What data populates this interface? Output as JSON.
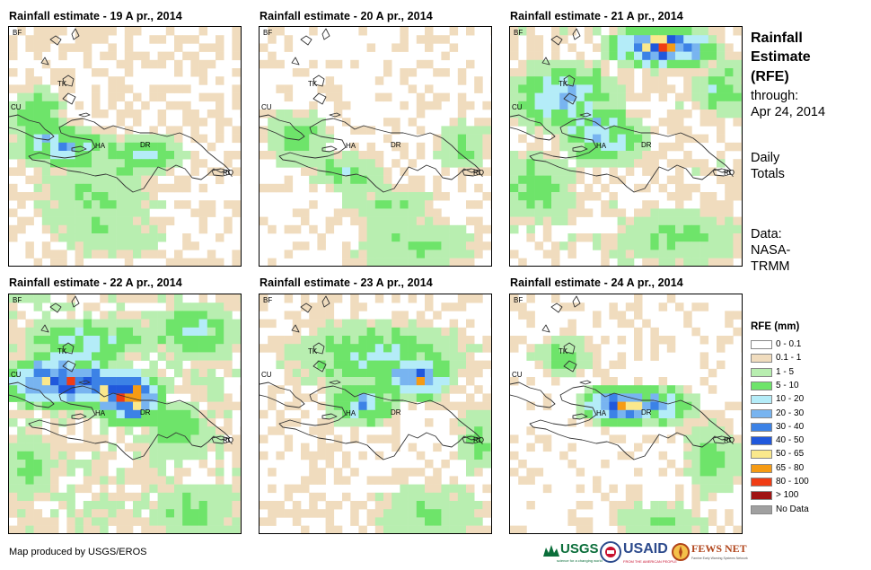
{
  "panels": [
    {
      "title": "Rainfall estimate - 19 A pr., 2014"
    },
    {
      "title": "Rainfall estimate - 20 A pr., 2014"
    },
    {
      "title": "Rainfall estimate - 21 A pr., 2014"
    },
    {
      "title": "Rainfall estimate - 22 A pr., 2014"
    },
    {
      "title": "Rainfall estimate - 23 A pr., 2014"
    },
    {
      "title": "Rainfall estimate - 24 A pr., 2014"
    }
  ],
  "map_labels": {
    "bf": "BF",
    "cu": "CU",
    "tk": "TK",
    "ha": "HA",
    "dr": "DR",
    "rq": "RQ"
  },
  "side": {
    "heading_1": "Rainfall",
    "heading_2": "Estimate",
    "heading_3": "(RFE)",
    "through": "through:",
    "date": "Apr 24, 2014",
    "daily_1": "Daily",
    "daily_2": "Totals",
    "data_1": "Data:",
    "data_2": "NASA-",
    "data_3": "TRMM"
  },
  "legend": {
    "title": "RFE (mm)",
    "items": [
      {
        "label": "0 - 0.1",
        "color": "#ffffff"
      },
      {
        "label": "0.1 - 1",
        "color": "#f0dcbe"
      },
      {
        "label": "1 - 5",
        "color": "#b8eeb0"
      },
      {
        "label": "5 - 10",
        "color": "#6ee46a"
      },
      {
        "label": "10 - 20",
        "color": "#b4ecf8"
      },
      {
        "label": "20 - 30",
        "color": "#78b4f0"
      },
      {
        "label": "30 - 40",
        "color": "#3c82e6"
      },
      {
        "label": "40 - 50",
        "color": "#2058dc"
      },
      {
        "label": "50 - 65",
        "color": "#fae88c"
      },
      {
        "label": "65 - 80",
        "color": "#f59b14"
      },
      {
        "label": "80 - 100",
        "color": "#f03c14"
      },
      {
        "label": "> 100",
        "color": "#a01414"
      },
      {
        "label": "No Data",
        "color": "#a0a0a0"
      }
    ]
  },
  "footer": "Map produced by USGS/EROS",
  "logos": {
    "usgs": "USGS",
    "usgs_tag": "science for a changing world",
    "usaid": "USAID",
    "usaid_tag": "FROM THE AMERICAN PEOPLE",
    "fews": "FEWS NET",
    "fews_tag": "Famine Early Warning Systems Network"
  }
}
